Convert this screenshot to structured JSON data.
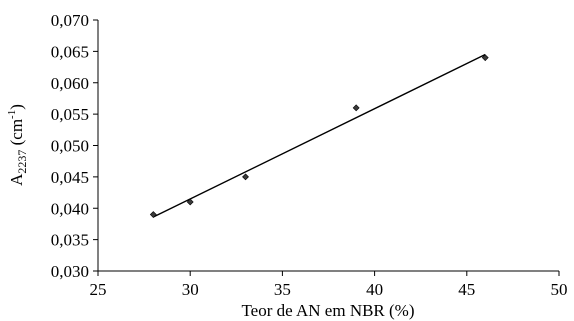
{
  "chart_data": {
    "type": "scatter",
    "title": "",
    "xlabel": "Teor de AN em NBR (%)",
    "ylabel": {
      "prefix": "A",
      "subscript": "2237",
      "unit_open": " (cm",
      "superscript": "-1",
      "unit_close": ")"
    },
    "xlim": [
      25,
      50
    ],
    "ylim": [
      0.03,
      0.07
    ],
    "x_ticks": [
      25,
      30,
      35,
      40,
      45,
      50
    ],
    "y_ticks": [
      0.03,
      0.035,
      0.04,
      0.045,
      0.05,
      0.055,
      0.06,
      0.065,
      0.07
    ],
    "x_tick_labels": [
      "25",
      "30",
      "35",
      "40",
      "45",
      "50"
    ],
    "y_tick_labels": [
      "0,030",
      "0,035",
      "0,040",
      "0,045",
      "0,050",
      "0,055",
      "0,060",
      "0,065",
      "0,070"
    ],
    "grid": false,
    "legend": "none",
    "marker": "diamond",
    "points": [
      {
        "x": 28,
        "y": 0.039
      },
      {
        "x": 30,
        "y": 0.041
      },
      {
        "x": 33,
        "y": 0.045
      },
      {
        "x": 39,
        "y": 0.056
      },
      {
        "x": 46,
        "y": 0.064
      }
    ],
    "trendline": {
      "type": "linear",
      "x_start": 28,
      "y_start": 0.0386,
      "x_end": 46,
      "y_end": 0.0645
    }
  }
}
